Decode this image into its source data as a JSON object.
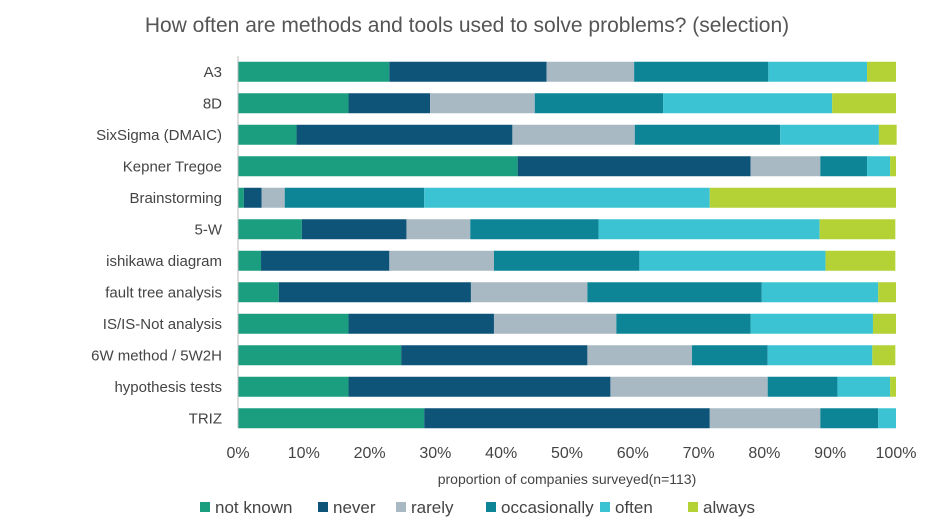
{
  "chart_data": {
    "type": "bar",
    "orientation": "horizontal",
    "stacked": true,
    "title": "How often are methods and tools used to solve problems? (selection)",
    "xlabel": "proportion of companies surveyed(n=113)",
    "ylabel": "",
    "xlim": [
      0,
      100
    ],
    "x_ticks": [
      "0%",
      "10%",
      "20%",
      "30%",
      "40%",
      "50%",
      "60%",
      "70%",
      "80%",
      "90%",
      "100%"
    ],
    "grid": false,
    "legend_position": "bottom",
    "categories": [
      "A3",
      "8D",
      "SixSigma (DMAIC)",
      "Kepner Tregoe",
      "Brainstorming",
      "5-W",
      "ishikawa diagram",
      "fault tree analysis",
      "IS/IS-Not analysis",
      "6W method / 5W2H",
      "hypothesis tests",
      "TRIZ"
    ],
    "series": [
      {
        "name": "not known",
        "color": "#1a9e7f",
        "values": [
          23.0,
          16.8,
          8.9,
          42.5,
          0.9,
          9.7,
          3.5,
          6.2,
          16.8,
          24.8,
          16.8,
          28.3
        ]
      },
      {
        "name": "never",
        "color": "#0d5478",
        "values": [
          23.9,
          12.4,
          32.8,
          35.4,
          2.7,
          15.9,
          19.5,
          29.2,
          22.1,
          28.3,
          39.8,
          43.4
        ]
      },
      {
        "name": "rarely",
        "color": "#a8b9c4",
        "values": [
          13.3,
          15.9,
          18.6,
          10.6,
          3.5,
          9.7,
          15.9,
          17.7,
          18.6,
          15.9,
          23.9,
          16.8
        ]
      },
      {
        "name": "occasionally",
        "color": "#0d8597",
        "values": [
          20.4,
          19.5,
          22.1,
          7.1,
          21.2,
          19.5,
          22.1,
          26.5,
          20.4,
          11.5,
          10.6,
          8.8
        ]
      },
      {
        "name": "often",
        "color": "#3cc3d3",
        "values": [
          15.0,
          25.7,
          15.0,
          3.5,
          43.4,
          33.6,
          28.3,
          17.7,
          18.6,
          15.9,
          8.0,
          2.7
        ]
      },
      {
        "name": "always",
        "color": "#b4d235",
        "values": [
          4.4,
          9.7,
          2.7,
          0.9,
          28.3,
          11.5,
          10.6,
          2.7,
          3.5,
          3.5,
          0.9,
          0.0
        ]
      }
    ]
  }
}
